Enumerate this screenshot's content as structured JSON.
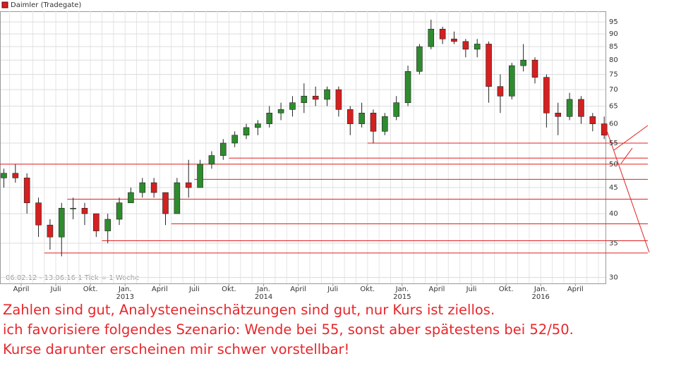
{
  "chart_data": {
    "type": "candlestick",
    "legend": "Daimler (Tradegate)",
    "info": "06.02.12 - 13.06.16   1 Tick = 1 Woche",
    "up_color": "#2e8b2e",
    "down_color": "#d42020",
    "line_color": "#e02020",
    "x": [
      "2012-02",
      "2012-03",
      "2012-04",
      "2012-05",
      "2012-06",
      "2012-07",
      "2012-08",
      "2012-09",
      "2012-10",
      "2012-11",
      "2012-12",
      "2013-01",
      "2013-02",
      "2013-03",
      "2013-04",
      "2013-05",
      "2013-06",
      "2013-07",
      "2013-08",
      "2013-09",
      "2013-10",
      "2013-11",
      "2013-12",
      "2014-01",
      "2014-02",
      "2014-03",
      "2014-04",
      "2014-05",
      "2014-06",
      "2014-07",
      "2014-08",
      "2014-09",
      "2014-10",
      "2014-11",
      "2014-12",
      "2015-01",
      "2015-02",
      "2015-03",
      "2015-04",
      "2015-05",
      "2015-06",
      "2015-07",
      "2015-08",
      "2015-09",
      "2015-10",
      "2015-11",
      "2015-12",
      "2016-01",
      "2016-02",
      "2016-03",
      "2016-04",
      "2016-05",
      "2016-06"
    ],
    "open": [
      47,
      48,
      47,
      42,
      38,
      36,
      41,
      41,
      40,
      37,
      39,
      42,
      44,
      46,
      44,
      40,
      46,
      45,
      50,
      52,
      55,
      57,
      59,
      60,
      63,
      64,
      66,
      68,
      67,
      70,
      64,
      60,
      63,
      58,
      62,
      66,
      76,
      85,
      92,
      88,
      87,
      84,
      86,
      71,
      68,
      78,
      80,
      74,
      63,
      62,
      67,
      62,
      60
    ],
    "high": [
      49,
      50,
      48,
      43,
      39,
      42,
      43,
      42,
      40,
      40,
      43,
      45,
      47,
      47,
      44,
      47,
      51,
      51,
      53,
      56,
      58,
      60,
      61,
      65,
      66,
      68,
      72,
      71,
      71,
      71,
      65,
      66,
      64,
      63,
      68,
      78,
      86,
      96,
      93,
      91,
      88,
      88,
      87,
      75,
      79,
      86,
      81,
      75,
      66,
      69,
      68,
      63,
      62
    ],
    "low": [
      45,
      46,
      40,
      36,
      34,
      33,
      39,
      38,
      36,
      35,
      38,
      42,
      43,
      43,
      38,
      40,
      43,
      45,
      49,
      51,
      54,
      56,
      57,
      59,
      61,
      62,
      63,
      65,
      65,
      62,
      57,
      59,
      55,
      57,
      61,
      65,
      75,
      84,
      86,
      86,
      81,
      81,
      66,
      63,
      67,
      76,
      72,
      59,
      57,
      61,
      60,
      58,
      56
    ],
    "close": [
      48,
      47,
      42,
      38,
      36,
      41,
      41,
      40,
      37,
      39,
      42,
      44,
      46,
      44,
      40,
      46,
      45,
      50,
      52,
      55,
      57,
      59,
      60,
      63,
      64,
      66,
      68,
      67,
      70,
      64,
      60,
      63,
      58,
      62,
      66,
      76,
      85,
      92,
      88,
      87,
      84,
      86,
      71,
      68,
      78,
      80,
      74,
      63,
      62,
      67,
      62,
      60,
      57
    ],
    "support_lines": [
      {
        "from": "2014-10",
        "level": 55
      },
      {
        "from": "2013-10",
        "level": 51.4
      },
      {
        "from": "2012-02",
        "level": 50
      },
      {
        "from": "2013-07",
        "level": 46.7
      },
      {
        "from": "2012-08",
        "level": 42.7
      },
      {
        "from": "2013-05",
        "level": 38.2
      },
      {
        "from": "2012-11",
        "level": 35.4
      },
      {
        "from": "2012-06",
        "level": 33.5
      }
    ],
    "log_scale": true,
    "ylim": [
      29.2,
      99.7
    ],
    "yticks": [
      30,
      35,
      40,
      45,
      50,
      55,
      60,
      65,
      70,
      75,
      80,
      85,
      90,
      95
    ],
    "xticks": [
      {
        "value": "2012-04",
        "label": "April"
      },
      {
        "value": "2012-07",
        "label": "Juli"
      },
      {
        "value": "2012-10",
        "label": "Okt."
      },
      {
        "value": "2013-01",
        "label": "Jan."
      },
      {
        "value": "2013-04",
        "label": "April"
      },
      {
        "value": "2013-07",
        "label": "Juli"
      },
      {
        "value": "2013-10",
        "label": "Okt."
      },
      {
        "value": "2014-01",
        "label": "Jan."
      },
      {
        "value": "2014-04",
        "label": "April"
      },
      {
        "value": "2014-07",
        "label": "Juli"
      },
      {
        "value": "2014-10",
        "label": "Okt."
      },
      {
        "value": "2015-01",
        "label": "Jan."
      },
      {
        "value": "2015-04",
        "label": "April"
      },
      {
        "value": "2015-07",
        "label": "Juli"
      },
      {
        "value": "2015-10",
        "label": "Okt."
      },
      {
        "value": "2016-01",
        "label": "Jan."
      },
      {
        "value": "2016-04",
        "label": "April"
      }
    ],
    "year_labels": [
      {
        "value": "2013-01",
        "label": "2013"
      },
      {
        "value": "2014-01",
        "label": "2014"
      },
      {
        "value": "2015-01",
        "label": "2015"
      },
      {
        "value": "2016-01",
        "label": "2016"
      }
    ],
    "grid": true
  },
  "caption": [
    "Zahlen sind gut, Analysteneinschätzungen sind gut, nur Kurs ist ziellos.",
    "ich favorisiere folgendes Szenario:  Wende bei 55, sonst aber spätestens bei 52/50.",
    "Kurse darunter erscheinen mir schwer vorstellbar!"
  ]
}
